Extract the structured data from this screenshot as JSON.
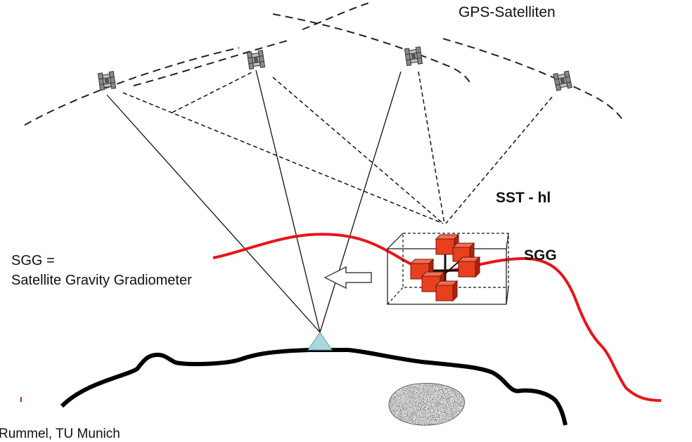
{
  "labels": {
    "gps_satellites": "GPS-Satelliten",
    "sst": "SST - hl",
    "sgg": "SGG",
    "definition_line1": "SGG =",
    "definition_line2": "Satellite Gravity Gradiometer",
    "credit": "Rummel, TU Munich"
  },
  "colors": {
    "gravity_curve": "#e8141b",
    "gradiometer_cubes": "#e8401f",
    "ground_station": "#a8d8de",
    "terrain": "#000000",
    "orbit_lines": "#222222"
  },
  "icons": [
    "satellite-icon",
    "gradiometer-cube-icon",
    "arrow-left-icon",
    "ground-station-icon",
    "density-anomaly-icon"
  ]
}
